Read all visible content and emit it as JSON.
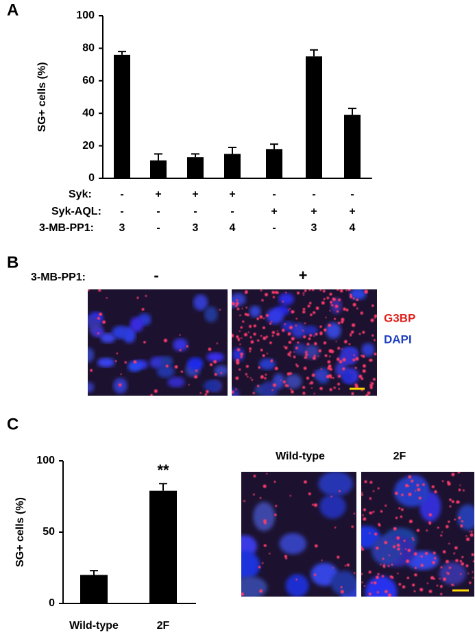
{
  "panel_labels": [
    "A",
    "B",
    "C"
  ],
  "chart_data": [
    {
      "type": "bar",
      "y_label": "SG+ cells (%)",
      "categories": [
        null,
        null,
        null,
        null,
        null,
        null,
        null
      ],
      "values": [
        76,
        11,
        13,
        15,
        18,
        75,
        39
      ],
      "errors": [
        2,
        4,
        2,
        4,
        3,
        4,
        4
      ],
      "color": "#000000",
      "ylim": [
        0,
        100
      ],
      "yticks": [
        0,
        20,
        40,
        60,
        80,
        100
      ],
      "conditions": [
        {
          "name": "Syk:",
          "values": [
            "-",
            "+",
            "+",
            "+",
            "-",
            "-",
            "-"
          ]
        },
        {
          "name": "Syk-AQL:",
          "values": [
            "-",
            "-",
            "-",
            "-",
            "+",
            "+",
            "+"
          ]
        },
        {
          "name": "3-MB-PP1:",
          "values": [
            "3",
            "-",
            "3",
            "4",
            "-",
            "3",
            "4"
          ]
        }
      ]
    },
    {
      "type": "bar",
      "y_label": "SG+ cells (%)",
      "categories": [
        "Wild-type",
        "2F"
      ],
      "values": [
        20,
        79
      ],
      "errors": [
        3,
        5
      ],
      "color": "#000000",
      "ylim": [
        0,
        100
      ],
      "yticks": [
        0,
        50,
        100
      ],
      "annotation": "**"
    }
  ],
  "panel_b": {
    "treatment": "3-MB-PP1:",
    "conditions": [
      "-",
      "+"
    ],
    "stains": [
      "G3BP",
      "DAPI"
    ]
  },
  "panel_c_images": [
    "Wild-type",
    "2F"
  ]
}
